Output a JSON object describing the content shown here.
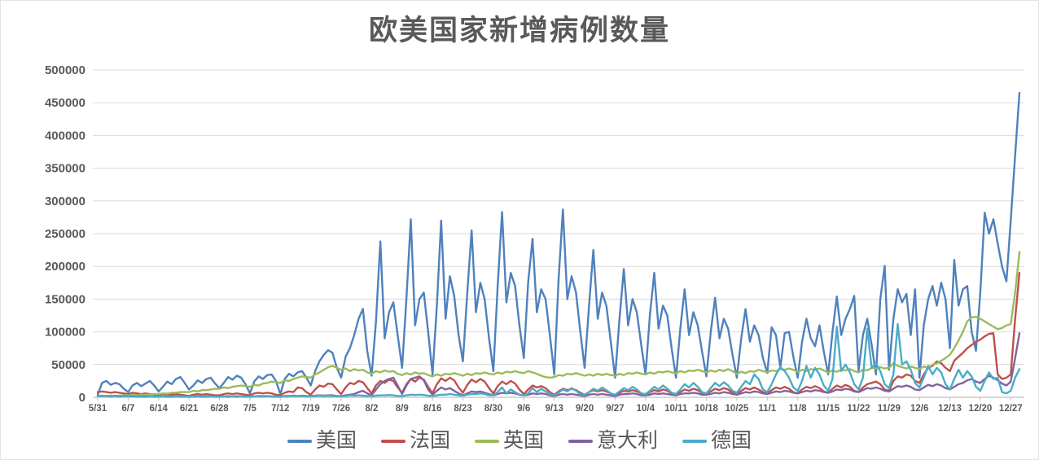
{
  "title": "欧美国家新增病例数量",
  "colors": {
    "background": "#ffffff",
    "grid": "#d9d9d9",
    "axis_line": "#bfbfbf",
    "axis_text": "#595959",
    "title_text": "#595959"
  },
  "chart_data": {
    "type": "line",
    "title": "欧美国家新增病例数量",
    "xlabel": "",
    "ylabel": "",
    "ylim": [
      0,
      500000
    ],
    "y_ticks": [
      0,
      50000,
      100000,
      150000,
      200000,
      250000,
      300000,
      350000,
      400000,
      450000,
      500000
    ],
    "x_tick_labels": [
      "5/31",
      "6/7",
      "6/14",
      "6/21",
      "6/28",
      "7/5",
      "7/12",
      "7/19",
      "7/26",
      "8/2",
      "8/9",
      "8/16",
      "8/23",
      "8/30",
      "9/6",
      "9/13",
      "9/20",
      "9/27",
      "10/4",
      "10/11",
      "10/18",
      "10/25",
      "11/1",
      "11/8",
      "11/15",
      "11/22",
      "11/29",
      "12/6",
      "12/13",
      "12/20",
      "12/27"
    ],
    "x_tick_interval_days": 7,
    "start_date": "5/31",
    "end_date": "12/29",
    "grid": "horizontal",
    "legend_position": "bottom",
    "series": [
      {
        "id": "us",
        "name": "美国",
        "color": "#4f81bd",
        "values": [
          4000,
          22000,
          25000,
          19000,
          22000,
          20000,
          13000,
          8000,
          18000,
          22000,
          17000,
          21000,
          25000,
          18000,
          9000,
          16000,
          24000,
          20000,
          28000,
          31000,
          22000,
          12000,
          18000,
          26000,
          22000,
          28000,
          30000,
          21000,
          14000,
          22000,
          31000,
          27000,
          33000,
          30000,
          20000,
          6000,
          24000,
          32000,
          28000,
          34000,
          35000,
          25000,
          5000,
          28000,
          36000,
          32000,
          38000,
          40000,
          30000,
          18000,
          40000,
          55000,
          65000,
          72000,
          68000,
          45000,
          30000,
          62000,
          75000,
          95000,
          120000,
          135000,
          70000,
          33000,
          115000,
          238000,
          90000,
          130000,
          145000,
          95000,
          45000,
          150000,
          272000,
          110000,
          150000,
          160000,
          100000,
          35000,
          140000,
          270000,
          120000,
          185000,
          155000,
          95000,
          55000,
          160000,
          255000,
          130000,
          175000,
          150000,
          90000,
          40000,
          170000,
          283000,
          145000,
          190000,
          170000,
          110000,
          60000,
          175000,
          242000,
          130000,
          165000,
          150000,
          95000,
          35000,
          180000,
          287000,
          150000,
          185000,
          160000,
          100000,
          45000,
          140000,
          225000,
          120000,
          160000,
          140000,
          85000,
          30000,
          120000,
          196000,
          110000,
          150000,
          130000,
          80000,
          35000,
          125000,
          190000,
          105000,
          140000,
          125000,
          75000,
          30000,
          105000,
          165000,
          95000,
          130000,
          110000,
          70000,
          32000,
          100000,
          152000,
          90000,
          120000,
          105000,
          65000,
          30000,
          90000,
          135000,
          85000,
          110000,
          95000,
          60000,
          37000,
          107000,
          95000,
          45000,
          98000,
          100000,
          62000,
          30000,
          85000,
          120000,
          90000,
          78000,
          110000,
          70000,
          35000,
          100000,
          154000,
          95000,
          120000,
          135000,
          155000,
          40000,
          95000,
          120000,
          80000,
          35000,
          150000,
          201000,
          42000,
          120000,
          165000,
          145000,
          158000,
          95000,
          165000,
          30000,
          110000,
          150000,
          170000,
          140000,
          175000,
          150000,
          75000,
          210000,
          140000,
          165000,
          170000,
          100000,
          71000,
          160000,
          282000,
          250000,
          272000,
          235000,
          200000,
          177000,
          270000,
          370000,
          465000
        ]
      },
      {
        "id": "france",
        "name": "法国",
        "color": "#c0504d",
        "values": [
          8000,
          9000,
          8000,
          7000,
          8000,
          7000,
          6000,
          5000,
          7000,
          6000,
          5000,
          6000,
          5000,
          4000,
          3000,
          5000,
          4000,
          4000,
          5000,
          4000,
          3000,
          2000,
          4000,
          5000,
          4000,
          5000,
          4000,
          3000,
          3000,
          5000,
          6000,
          5000,
          6000,
          5000,
          4000,
          3000,
          6000,
          7000,
          6000,
          7000,
          6000,
          4000,
          3000,
          7000,
          9000,
          8000,
          15000,
          14000,
          8000,
          4000,
          12000,
          18000,
          16000,
          21000,
          20000,
          12000,
          5000,
          15000,
          22000,
          20000,
          25000,
          23000,
          14000,
          6000,
          18000,
          25000,
          22000,
          27000,
          25000,
          15000,
          7000,
          20000,
          28000,
          24000,
          30000,
          27000,
          16000,
          6000,
          20000,
          29000,
          25000,
          30000,
          26000,
          15000,
          7000,
          19000,
          27000,
          23000,
          28000,
          24000,
          14000,
          6000,
          17000,
          24000,
          20000,
          25000,
          21000,
          12000,
          5000,
          12000,
          18000,
          15000,
          17000,
          14000,
          8000,
          4000,
          9000,
          13000,
          11000,
          13000,
          11000,
          7000,
          4000,
          8000,
          11000,
          9000,
          11000,
          9000,
          6000,
          3000,
          7000,
          10000,
          9000,
          11000,
          9000,
          6000,
          4000,
          8000,
          11000,
          9000,
          12000,
          10000,
          6000,
          4000,
          8000,
          12000,
          10000,
          13000,
          11000,
          7000,
          5000,
          9000,
          13000,
          11000,
          14000,
          12000,
          7000,
          5000,
          10000,
          14000,
          12000,
          15000,
          12000,
          8000,
          6000,
          11000,
          15000,
          13000,
          16000,
          13000,
          8000,
          6000,
          12000,
          16000,
          14000,
          17000,
          14000,
          9000,
          7000,
          13000,
          18000,
          15000,
          19000,
          16000,
          10000,
          8000,
          15000,
          20000,
          22000,
          24000,
          20000,
          12000,
          10000,
          25000,
          32000,
          30000,
          35000,
          33000,
          25000,
          22000,
          35000,
          45000,
          48000,
          55000,
          52000,
          45000,
          40000,
          56000,
          62000,
          68000,
          75000,
          80000,
          85000,
          88000,
          93000,
          97000,
          98000,
          35000,
          28000,
          30000,
          35000,
          120000,
          190000
        ]
      },
      {
        "id": "uk",
        "name": "英国",
        "color": "#9bbb59",
        "values": [
          1500,
          2000,
          2000,
          2500,
          2000,
          2500,
          3000,
          3000,
          3500,
          3000,
          4000,
          4000,
          4500,
          5000,
          5000,
          6000,
          5500,
          7000,
          7000,
          8000,
          8000,
          8000,
          10000,
          9000,
          11000,
          11000,
          12000,
          13000,
          13000,
          15000,
          14000,
          16000,
          17000,
          18000,
          17000,
          16000,
          19000,
          18000,
          21000,
          22000,
          24000,
          23000,
          22000,
          26000,
          25000,
          28000,
          30000,
          32000,
          31000,
          30000,
          35000,
          38000,
          42000,
          46000,
          48000,
          45000,
          42000,
          44000,
          40000,
          43000,
          41000,
          42000,
          38000,
          36000,
          40000,
          38000,
          41000,
          39000,
          40000,
          36000,
          34000,
          37000,
          35000,
          38000,
          36000,
          37000,
          34000,
          32000,
          35000,
          33000,
          36000,
          35000,
          37000,
          35000,
          33000,
          36000,
          34000,
          37000,
          36000,
          38000,
          36000,
          35000,
          38000,
          36000,
          39000,
          38000,
          40000,
          38000,
          37000,
          40000,
          38000,
          36000,
          33000,
          31000,
          30000,
          31000,
          34000,
          33000,
          36000,
          35000,
          37000,
          35000,
          33000,
          35000,
          33000,
          36000,
          34000,
          36000,
          34000,
          33000,
          36000,
          34000,
          37000,
          36000,
          38000,
          36000,
          35000,
          38000,
          36000,
          39000,
          38000,
          40000,
          38000,
          37000,
          40000,
          38000,
          41000,
          40000,
          42000,
          40000,
          38000,
          41000,
          39000,
          42000,
          40000,
          43000,
          40000,
          36000,
          39000,
          37000,
          40000,
          39000,
          42000,
          40000,
          38000,
          41000,
          40000,
          43000,
          42000,
          44000,
          42000,
          39000,
          42000,
          40000,
          43000,
          42000,
          44000,
          41000,
          38000,
          41000,
          39000,
          42000,
          41000,
          43000,
          40000,
          38000,
          42000,
          41000,
          45000,
          44000,
          46000,
          44000,
          45000,
          52000,
          48000,
          46000,
          44000,
          47000,
          45000,
          43000,
          47000,
          45000,
          50000,
          52000,
          56000,
          60000,
          65000,
          75000,
          87000,
          100000,
          116000,
          122000,
          123000,
          120000,
          116000,
          112000,
          108000,
          104000,
          106000,
          110000,
          112000,
          160000,
          222000
        ]
      },
      {
        "id": "italy",
        "name": "意大利",
        "color": "#8064a2",
        "values": [
          2500,
          2000,
          2000,
          1500,
          2000,
          1500,
          1500,
          1500,
          1500,
          1000,
          1500,
          1000,
          1500,
          1000,
          1000,
          1500,
          1000,
          1000,
          1500,
          1000,
          1000,
          1000,
          1000,
          1500,
          1000,
          1000,
          1500,
          1000,
          1000,
          1500,
          1000,
          1500,
          1000,
          1500,
          1000,
          1000,
          1500,
          2000,
          1500,
          2000,
          1500,
          1000,
          1000,
          2000,
          2000,
          2500,
          2000,
          2500,
          2000,
          2000,
          2500,
          3000,
          2500,
          3000,
          3000,
          2000,
          2000,
          3000,
          4000,
          5000,
          8000,
          10000,
          6000,
          3000,
          12000,
          20000,
          25000,
          28000,
          30000,
          18000,
          5000,
          18000,
          28000,
          30000,
          32000,
          26000,
          12000,
          4000,
          10000,
          15000,
          12000,
          14000,
          10000,
          6000,
          3000,
          6000,
          9000,
          8000,
          9000,
          7000,
          5000,
          3000,
          5000,
          7000,
          6000,
          7000,
          6000,
          4000,
          3000,
          4000,
          6000,
          5000,
          6000,
          5000,
          3000,
          2000,
          4000,
          5000,
          4000,
          5000,
          4000,
          3000,
          2000,
          4000,
          5000,
          4000,
          5000,
          4000,
          3000,
          2000,
          4000,
          5000,
          5000,
          6000,
          5000,
          3000,
          3000,
          4000,
          6000,
          5000,
          6000,
          5000,
          4000,
          3000,
          5000,
          6000,
          6000,
          7000,
          6000,
          4000,
          4000,
          5000,
          7000,
          6000,
          8000,
          7000,
          5000,
          4000,
          6000,
          8000,
          7000,
          9000,
          8000,
          6000,
          5000,
          7000,
          9000,
          8000,
          10000,
          9000,
          7000,
          6000,
          8000,
          10000,
          9000,
          11000,
          10000,
          8000,
          7000,
          9000,
          12000,
          11000,
          13000,
          12000,
          9000,
          8000,
          11000,
          14000,
          13000,
          15000,
          13000,
          10000,
          9000,
          13000,
          17000,
          16000,
          18000,
          16000,
          12000,
          11000,
          15000,
          19000,
          17000,
          20000,
          18000,
          14000,
          12000,
          16000,
          20000,
          22000,
          26000,
          28000,
          24000,
          22000,
          28000,
          33000,
          30000,
          26000,
          21000,
          18000,
          24000,
          60000,
          98000
        ]
      },
      {
        "id": "germany",
        "name": "德国",
        "color": "#4bacc6",
        "values": [
          2000,
          2500,
          2000,
          2000,
          2500,
          2000,
          1500,
          1500,
          2000,
          1500,
          2000,
          2000,
          1500,
          1000,
          1000,
          1500,
          2000,
          1500,
          2000,
          1500,
          1000,
          1000,
          1500,
          2000,
          1500,
          2000,
          1500,
          1000,
          1000,
          1500,
          2000,
          1500,
          2000,
          1500,
          1000,
          1000,
          1500,
          2000,
          2000,
          2000,
          1500,
          1000,
          1000,
          2000,
          2000,
          2500,
          2000,
          2000,
          1500,
          1500,
          2000,
          2500,
          2000,
          2500,
          2000,
          1500,
          1500,
          2000,
          3000,
          2500,
          3000,
          2500,
          2000,
          2000,
          2500,
          3000,
          3000,
          3500,
          3000,
          2000,
          2000,
          3000,
          4000,
          3500,
          4000,
          3500,
          2500,
          2000,
          3000,
          4000,
          4000,
          5000,
          4000,
          3000,
          2500,
          4000,
          5000,
          5000,
          6000,
          5000,
          3000,
          3000,
          8000,
          15000,
          6000,
          12000,
          8000,
          4000,
          3000,
          6000,
          14000,
          8000,
          13000,
          9000,
          5000,
          3000,
          7000,
          12000,
          9000,
          14000,
          10000,
          5000,
          4000,
          8000,
          13000,
          10000,
          15000,
          11000,
          6000,
          4000,
          9000,
          14000,
          11000,
          16000,
          12000,
          6000,
          5000,
          10000,
          16000,
          12000,
          18000,
          13000,
          7000,
          5000,
          12000,
          20000,
          15000,
          22000,
          16000,
          8000,
          6000,
          14000,
          22000,
          17000,
          23000,
          18000,
          10000,
          7000,
          16000,
          25000,
          20000,
          35000,
          28000,
          12000,
          8000,
          20000,
          35000,
          46000,
          40000,
          30000,
          15000,
          10000,
          25000,
          48000,
          30000,
          45000,
          35000,
          18000,
          10000,
          28000,
          108000,
          40000,
          50000,
          38000,
          20000,
          12000,
          30000,
          105000,
          45000,
          52000,
          40000,
          20000,
          14000,
          35000,
          112000,
          50000,
          55000,
          42000,
          22000,
          15000,
          30000,
          48000,
          35000,
          45000,
          38000,
          20000,
          12000,
          28000,
          42000,
          30000,
          40000,
          32000,
          16000,
          10000,
          25000,
          38000,
          28000,
          30000,
          8000,
          6000,
          10000,
          30000,
          43000
        ]
      }
    ]
  }
}
